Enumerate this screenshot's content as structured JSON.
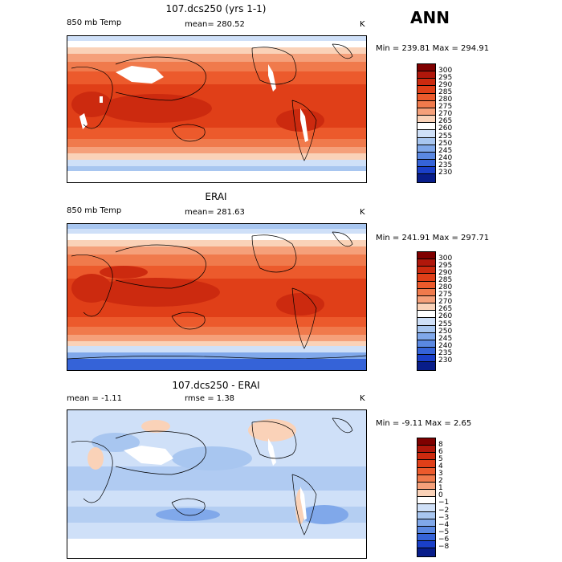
{
  "season": "ANN",
  "panels": [
    {
      "id": "model",
      "title": "107.dcs250 (yrs 1-1)",
      "left": "850 mb Temp",
      "center": "mean= 280.52",
      "right": "K",
      "minmax": "Min = 239.81 Max = 294.91",
      "colorbar_labels": [
        "300",
        "295",
        "290",
        "285",
        "280",
        "275",
        "270",
        "265",
        "260",
        "255",
        "250",
        "245",
        "240",
        "235",
        "230"
      ]
    },
    {
      "id": "obs",
      "title": "ERAI",
      "left": "850 mb Temp",
      "center": "mean= 281.63",
      "right": "K",
      "minmax": "Min = 241.91 Max = 297.71",
      "colorbar_labels": [
        "300",
        "295",
        "290",
        "285",
        "280",
        "275",
        "270",
        "265",
        "260",
        "255",
        "250",
        "245",
        "240",
        "235",
        "230"
      ]
    },
    {
      "id": "diff",
      "title": "107.dcs250 - ERAI",
      "left": "mean =  -1.11",
      "center": "rmse =   1.38",
      "right": "K",
      "minmax": "Min =  -9.11 Max =   2.65",
      "colorbar_labels": [
        "8",
        "6",
        "5",
        "4",
        "3",
        "2",
        "1",
        "0",
        "−1",
        "−2",
        "−3",
        "−4",
        "−5",
        "−6",
        "−8"
      ]
    }
  ],
  "colors": {
    "temp_scale": [
      "#7f0000",
      "#b0170b",
      "#cc2a0f",
      "#e03f18",
      "#ec5a2c",
      "#f07a4c",
      "#f5a07a",
      "#fad2b8",
      "#ffffff",
      "#cfe0f8",
      "#a8c6f0",
      "#80a8ea",
      "#5a88e2",
      "#3563d8",
      "#1a3fc8",
      "#081d8a"
    ],
    "diff_scale": [
      "#7f0000",
      "#b0170b",
      "#cc2a0f",
      "#e03f18",
      "#ec5a2c",
      "#f07a4c",
      "#f5a07a",
      "#fad2b8",
      "#ffffff",
      "#cfe0f8",
      "#a8c6f0",
      "#80a8ea",
      "#5a88e2",
      "#3563d8",
      "#1a3fc8",
      "#081d8a"
    ]
  }
}
